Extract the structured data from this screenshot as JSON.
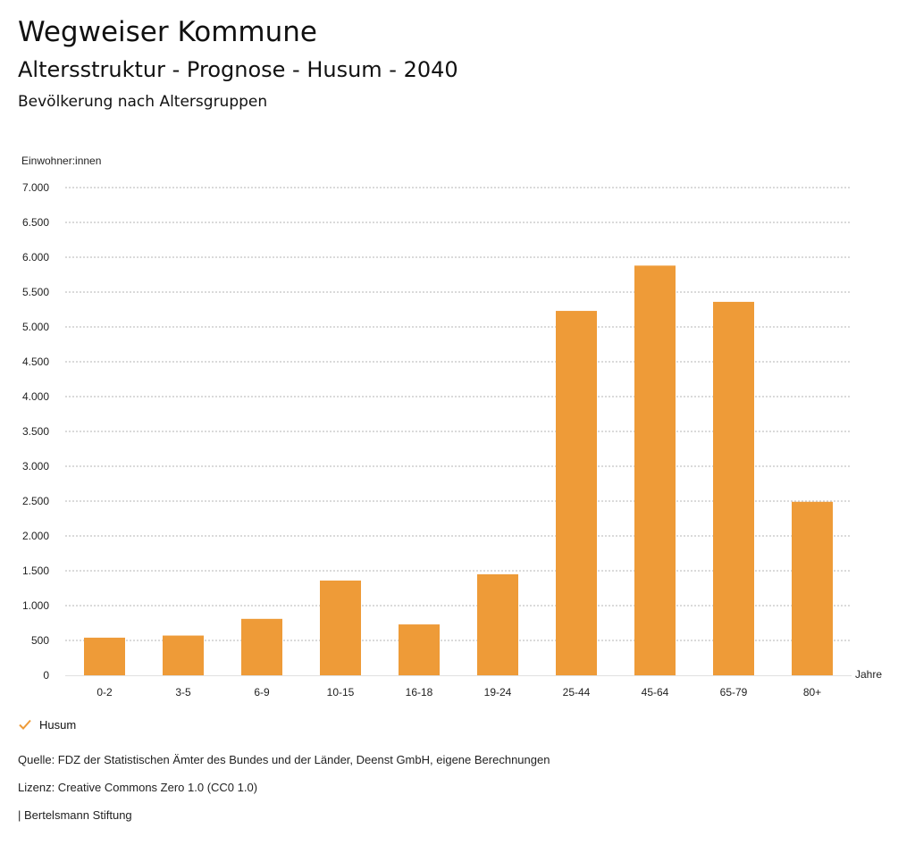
{
  "header": {
    "title": "Wegweiser Kommune",
    "subtitle": "Altersstruktur - Prognose - Husum - 2040",
    "heading": "Bevölkerung nach Altersgruppen"
  },
  "chart_data": {
    "type": "bar",
    "ylabel": "Einwohner:innen",
    "xlabel": "Jahre",
    "categories": [
      "0-2",
      "3-5",
      "6-9",
      "10-15",
      "16-18",
      "19-24",
      "25-44",
      "45-64",
      "65-79",
      "80+"
    ],
    "series": [
      {
        "name": "Husum",
        "values": [
          540,
          570,
          810,
          1360,
          730,
          1450,
          5230,
          5880,
          5360,
          2490
        ]
      }
    ],
    "ylim": [
      0,
      7000
    ],
    "yticks": [
      0,
      500,
      1000,
      1500,
      2000,
      2500,
      3000,
      3500,
      4000,
      4500,
      5000,
      5500,
      6000,
      6500,
      7000
    ],
    "ytick_labels": [
      "0",
      "500",
      "1.000",
      "1.500",
      "2.000",
      "2.500",
      "3.000",
      "3.500",
      "4.000",
      "4.500",
      "5.000",
      "5.500",
      "6.000",
      "6.500",
      "7.000"
    ],
    "grid": true,
    "bar_color": "#EE9B38"
  },
  "legend": {
    "label": "Husum",
    "color": "#EE9B38"
  },
  "footer": {
    "source": "Quelle: FDZ der Statistischen Ämter des Bundes und der Länder, Deenst GmbH, eigene Berechnungen",
    "license": "Lizenz: Creative Commons Zero 1.0 (CC0 1.0)",
    "publisher": "| Bertelsmann Stiftung"
  }
}
